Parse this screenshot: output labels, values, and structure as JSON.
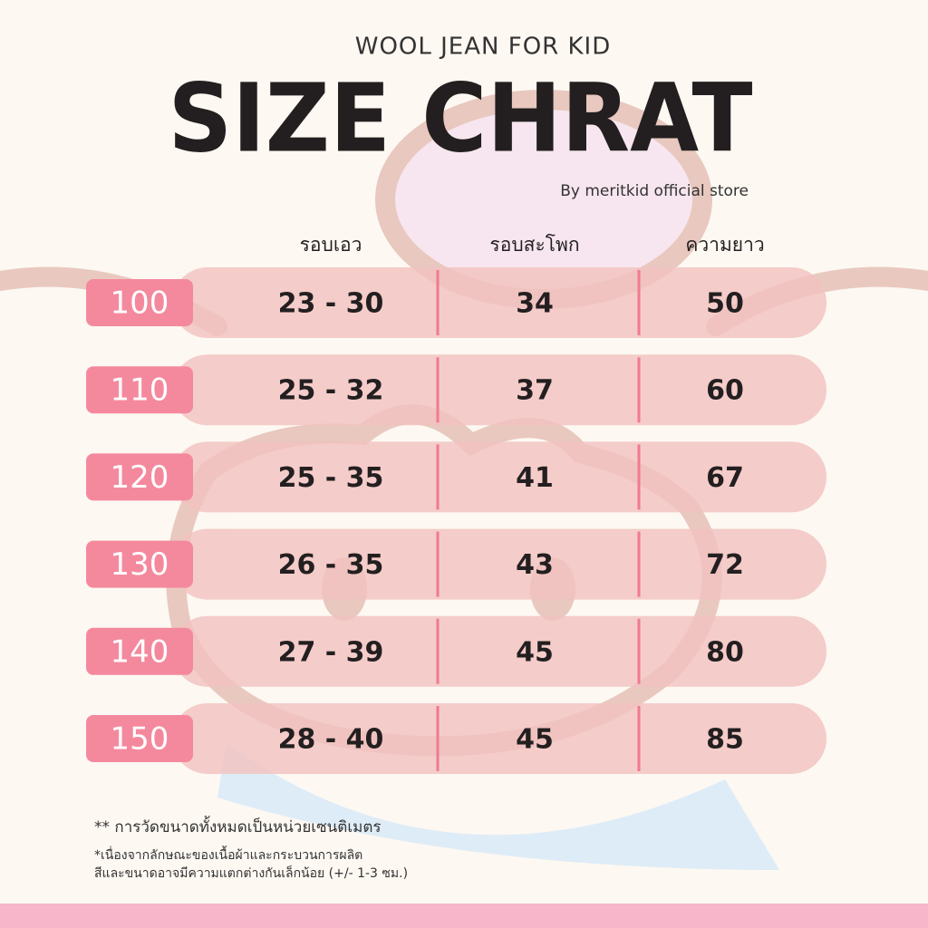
{
  "header": {
    "subtitle": "WOOL JEAN FOR KID",
    "title": "SIZE CHRAT",
    "byline": "By meritkid official store"
  },
  "table": {
    "columns": [
      "รอบเอว",
      "รอบสะโพก",
      "ความยาว"
    ],
    "rows": [
      [
        "100",
        "23 - 30",
        "34",
        "50"
      ],
      [
        "110",
        "25 - 32",
        "37",
        "60"
      ],
      [
        "120",
        "25 - 35",
        "41",
        "67"
      ],
      [
        "130",
        "26 - 35",
        "43",
        "72"
      ],
      [
        "140",
        "27 - 39",
        "45",
        "80"
      ],
      [
        "150",
        "28 - 40",
        "45",
        "85"
      ]
    ]
  },
  "notes": [
    "** การวัดขนาดทั้งหมดเป็นหน่วยเซนติเมตร",
    "*เนื่องจากลักษณะของเนื้อผ้าและกระบวนการผลิต",
    "สีและขนาดอาจมีความแตกต่างกันเล็กน้อย (+/- 1-3 ซม.)"
  ]
}
